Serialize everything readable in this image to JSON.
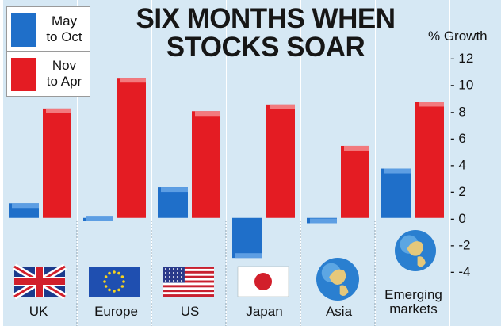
{
  "chart_data": {
    "type": "bar",
    "title": "SIX MONTHS WHEN STOCKS SOAR",
    "ylabel": "% Growth",
    "ylim": [
      -4,
      12
    ],
    "yticks": [
      12,
      10,
      8,
      6,
      4,
      2,
      0,
      -2,
      -4
    ],
    "ytick_labels": [
      "- 12",
      "- 10",
      "- 8",
      "- 6",
      "- 4",
      "- 2",
      "- 0",
      "- -2",
      "- -4"
    ],
    "categories": [
      "UK",
      "Europe",
      "US",
      "Japan",
      "Asia",
      "Emerging markets"
    ],
    "series": [
      {
        "name": "May to Oct",
        "color": "#1f6fc9",
        "values": [
          1.1,
          -0.2,
          2.3,
          -3.0,
          -0.4,
          3.7
        ]
      },
      {
        "name": "Nov to Apr",
        "color": "#e41c23",
        "values": [
          8.2,
          10.5,
          8.0,
          8.5,
          5.4,
          8.7
        ]
      }
    ],
    "legend": "top-left",
    "grid": false,
    "icons": [
      "uk-flag",
      "eu-flag",
      "us-flag",
      "japan-flag",
      "globe-asia",
      "globe-emerging"
    ]
  },
  "legend_items": [
    {
      "line1": "May",
      "line2": "to Oct"
    },
    {
      "line1": "Nov",
      "line2": "to Apr"
    }
  ],
  "labels": {
    "uk": "UK",
    "europe": "Europe",
    "us": "US",
    "japan": "Japan",
    "asia": "Asia",
    "emerging_line1": "Emerging",
    "emerging_line2": "markets"
  }
}
